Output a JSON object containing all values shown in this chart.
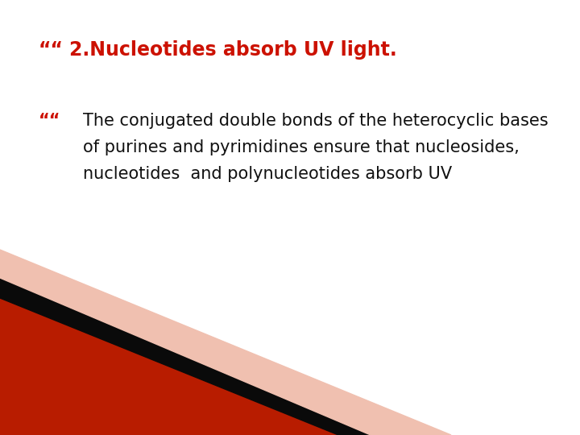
{
  "background_color": "#ffffff",
  "title_text": "2.Nucleotides absorb UV light.",
  "title_color": "#cc1100",
  "title_fontsize": 17,
  "bullet_marker": "““",
  "body_text_line1": "The conjugated double bonds of the heterocyclic bases",
  "body_text_line2": "of purines and pyrimidines ensure that nucleosides,",
  "body_text_line3": "nucleotides  and polynucleotides absorb UV",
  "body_color": "#111111",
  "body_fontsize": 15,
  "decoration_red": "#b81c00",
  "decoration_black": "#0a0a0a",
  "decoration_light": "#f0c0b0"
}
